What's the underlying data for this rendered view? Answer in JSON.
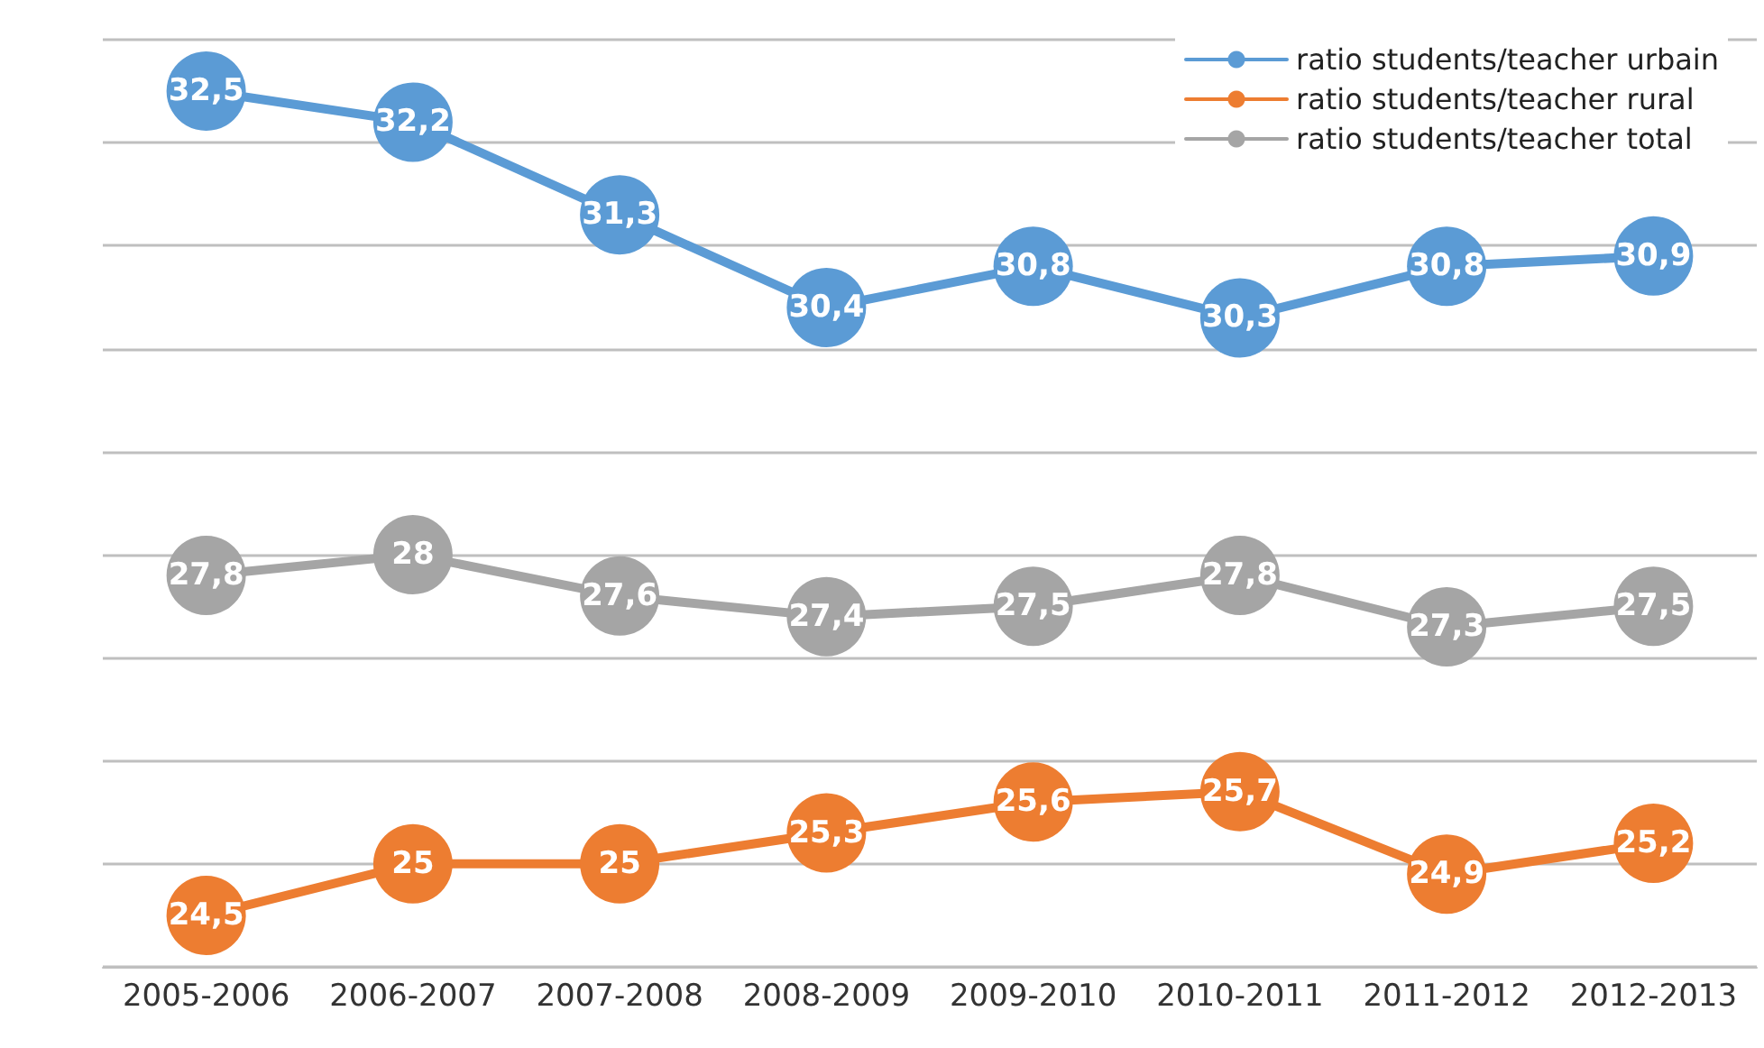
{
  "chart_data": {
    "type": "line",
    "categories": [
      "2005-2006",
      "2006-2007",
      "2007-2008",
      "2008-2009",
      "2009-2010",
      "2010-2011",
      "2011-2012",
      "2012-2013"
    ],
    "series": [
      {
        "name": "ratio students/teacher urbain",
        "color": "#5b9bd5",
        "values": [
          32.5,
          32.2,
          31.3,
          30.4,
          30.8,
          30.3,
          30.8,
          30.9
        ],
        "value_labels": [
          "32,5",
          "32,2",
          "31,3",
          "30,4",
          "30,8",
          "30,3",
          "30,8",
          "30,9"
        ]
      },
      {
        "name": "ratio students/teacher rural",
        "color": "#ed7d31",
        "values": [
          24.5,
          25,
          25,
          25.3,
          25.6,
          25.7,
          24.9,
          25.2
        ],
        "value_labels": [
          "24,5",
          "25",
          "25",
          "25,3",
          "25,6",
          "25,7",
          "24,9",
          "25,2"
        ]
      },
      {
        "name": "ratio students/teacher total",
        "color": "#a5a5a5",
        "values": [
          27.8,
          28,
          27.6,
          27.4,
          27.5,
          27.8,
          27.3,
          27.5
        ],
        "value_labels": [
          "27,8",
          "28",
          "27,6",
          "27,4",
          "27,5",
          "27,8",
          "27,3",
          "27,5"
        ]
      }
    ],
    "ylim": [
      24,
      33
    ],
    "yticks": [
      {
        "value": 24,
        "label": null
      },
      {
        "value": 25,
        "label": null
      },
      {
        "value": 26,
        "label": null
      },
      {
        "value": 27,
        "label": null
      },
      {
        "value": 28,
        "label": null
      },
      {
        "value": 29,
        "label": null
      },
      {
        "value": 30,
        "label": null
      },
      {
        "value": 31,
        "label": null
      },
      {
        "value": 32,
        "label": null
      },
      {
        "value": 33,
        "label": null
      }
    ],
    "tick_labels": "x",
    "grid": "y",
    "legend": "top right",
    "marker": "circle",
    "line_style": "solid"
  }
}
